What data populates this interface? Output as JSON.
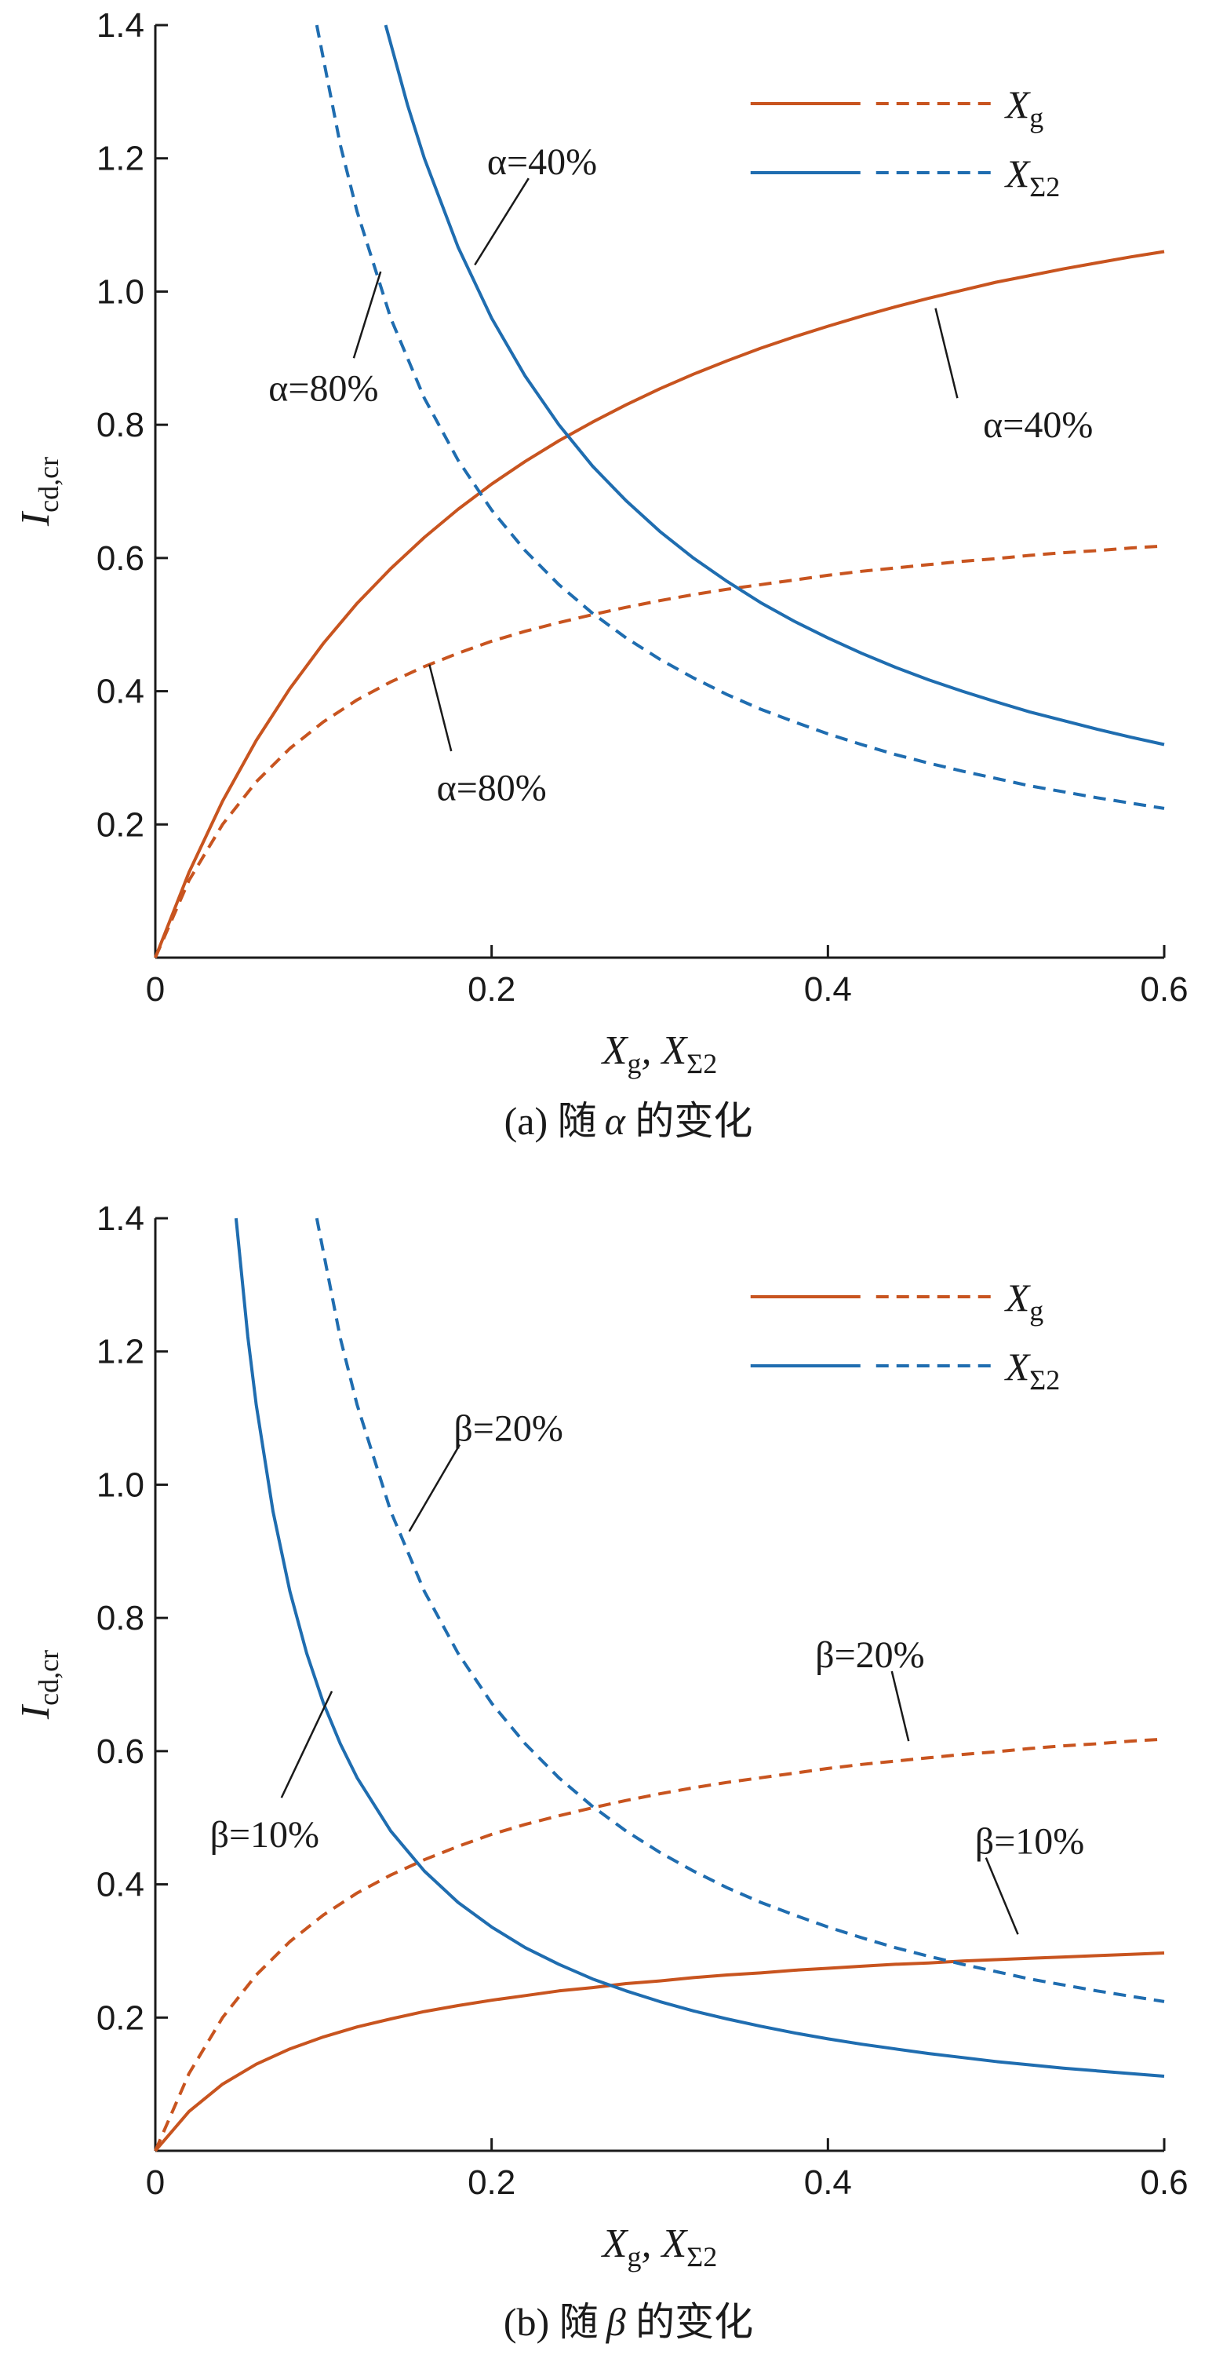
{
  "colors": {
    "orange": "#c8541f",
    "blue": "#1f6db0",
    "axis": "#1a1a1a"
  },
  "chart_data": [
    {
      "type": "line",
      "caption": "(a)  随",
      "caption_symbol": "α",
      "caption_suffix": " 的变化",
      "xlabel": "X",
      "xlabel_sub1": "g",
      "xlabel_mid": ", X",
      "xlabel_sub2": "Σ2",
      "ylabel": "I",
      "ylabel_sub": "cd,cr",
      "xlim": [
        0,
        0.6
      ],
      "ylim": [
        0,
        1.4
      ],
      "xticks": [
        0,
        0.2,
        0.4,
        0.6
      ],
      "xtick_labels": [
        "0",
        "0.2",
        "0.4",
        "0.6"
      ],
      "yticks": [
        0.2,
        0.4,
        0.6,
        0.8,
        1.0,
        1.2,
        1.4
      ],
      "ytick_labels": [
        "0.2",
        "0.4",
        "0.6",
        "0.8",
        "1.0",
        "1.2",
        "1.4"
      ],
      "legend": {
        "position": "top-right",
        "entries": [
          {
            "label": "X",
            "sub": "g",
            "color": "orange"
          },
          {
            "label": "X",
            "sub": "Σ2",
            "color": "blue"
          }
        ]
      },
      "series": [
        {
          "color": "orange",
          "style": "solid",
          "x": [
            0,
            0.02,
            0.04,
            0.06,
            0.08,
            0.1,
            0.12,
            0.14,
            0.16,
            0.18,
            0.2,
            0.22,
            0.24,
            0.26,
            0.28,
            0.3,
            0.32,
            0.34,
            0.36,
            0.38,
            0.4,
            0.42,
            0.44,
            0.46,
            0.48,
            0.5,
            0.52,
            0.54,
            0.56,
            0.58,
            0.6
          ],
          "y": [
            0,
            0.128,
            0.235,
            0.326,
            0.404,
            0.472,
            0.532,
            0.584,
            0.631,
            0.673,
            0.711,
            0.745,
            0.776,
            0.804,
            0.83,
            0.854,
            0.876,
            0.896,
            0.915,
            0.932,
            0.948,
            0.963,
            0.977,
            0.99,
            1.002,
            1.014,
            1.024,
            1.034,
            1.043,
            1.052,
            1.06
          ]
        },
        {
          "color": "orange",
          "style": "dashed",
          "x": [
            0,
            0.02,
            0.04,
            0.06,
            0.08,
            0.1,
            0.12,
            0.14,
            0.16,
            0.18,
            0.2,
            0.22,
            0.24,
            0.26,
            0.28,
            0.3,
            0.32,
            0.34,
            0.36,
            0.38,
            0.4,
            0.42,
            0.44,
            0.46,
            0.48,
            0.5,
            0.52,
            0.54,
            0.56,
            0.58,
            0.6
          ],
          "y": [
            0,
            0.116,
            0.2,
            0.264,
            0.314,
            0.354,
            0.387,
            0.414,
            0.437,
            0.457,
            0.475,
            0.49,
            0.503,
            0.515,
            0.526,
            0.536,
            0.545,
            0.553,
            0.56,
            0.567,
            0.574,
            0.58,
            0.585,
            0.59,
            0.595,
            0.599,
            0.604,
            0.608,
            0.611,
            0.615,
            0.618
          ]
        },
        {
          "color": "blue",
          "style": "solid",
          "x": [
            0.137,
            0.15,
            0.16,
            0.18,
            0.2,
            0.22,
            0.24,
            0.26,
            0.28,
            0.3,
            0.32,
            0.34,
            0.36,
            0.38,
            0.4,
            0.42,
            0.44,
            0.46,
            0.48,
            0.5,
            0.52,
            0.54,
            0.56,
            0.58,
            0.6
          ],
          "y": [
            1.4,
            1.28,
            1.2,
            1.067,
            0.96,
            0.873,
            0.8,
            0.738,
            0.686,
            0.64,
            0.6,
            0.565,
            0.533,
            0.505,
            0.48,
            0.457,
            0.436,
            0.417,
            0.4,
            0.384,
            0.369,
            0.356,
            0.343,
            0.331,
            0.32
          ]
        },
        {
          "color": "blue",
          "style": "dashed",
          "x": [
            0.096,
            0.11,
            0.12,
            0.14,
            0.16,
            0.18,
            0.2,
            0.22,
            0.24,
            0.26,
            0.28,
            0.3,
            0.32,
            0.34,
            0.36,
            0.38,
            0.4,
            0.42,
            0.44,
            0.46,
            0.48,
            0.5,
            0.52,
            0.54,
            0.56,
            0.58,
            0.6
          ],
          "y": [
            1.4,
            1.22,
            1.12,
            0.96,
            0.84,
            0.747,
            0.672,
            0.611,
            0.56,
            0.517,
            0.48,
            0.448,
            0.42,
            0.395,
            0.373,
            0.354,
            0.336,
            0.32,
            0.305,
            0.292,
            0.28,
            0.269,
            0.258,
            0.249,
            0.24,
            0.232,
            0.224
          ]
        }
      ],
      "annotations": [
        {
          "text": "α=40%",
          "at": [
            0.23,
            1.195
          ],
          "leader": [
            [
              0.222,
              1.17
            ],
            [
              0.19,
              1.04
            ]
          ]
        },
        {
          "text": "α=80%",
          "at": [
            0.1,
            0.855
          ],
          "leader": [
            [
              0.118,
              0.9
            ],
            [
              0.134,
              1.03
            ]
          ]
        },
        {
          "text": "α=40%",
          "at": [
            0.525,
            0.8
          ],
          "leader": [
            [
              0.477,
              0.84
            ],
            [
              0.464,
              0.975
            ]
          ]
        },
        {
          "text": "α=80%",
          "at": [
            0.2,
            0.255
          ],
          "leader": [
            [
              0.176,
              0.31
            ],
            [
              0.163,
              0.44
            ]
          ]
        }
      ]
    },
    {
      "type": "line",
      "caption": "(b)  随",
      "caption_symbol": "β",
      "caption_suffix": " 的变化",
      "xlabel": "X",
      "xlabel_sub1": "g",
      "xlabel_mid": ", X",
      "xlabel_sub2": "Σ2",
      "ylabel": "I",
      "ylabel_sub": "cd,cr",
      "xlim": [
        0,
        0.6
      ],
      "ylim": [
        0,
        1.4
      ],
      "xticks": [
        0,
        0.2,
        0.4,
        0.6
      ],
      "xtick_labels": [
        "0",
        "0.2",
        "0.4",
        "0.6"
      ],
      "yticks": [
        0.2,
        0.4,
        0.6,
        0.8,
        1.0,
        1.2,
        1.4
      ],
      "ytick_labels": [
        "0.2",
        "0.4",
        "0.6",
        "0.8",
        "1.0",
        "1.2",
        "1.4"
      ],
      "legend": {
        "position": "top-right",
        "entries": [
          {
            "label": "X",
            "sub": "g",
            "color": "orange"
          },
          {
            "label": "X",
            "sub": "Σ2",
            "color": "blue"
          }
        ]
      },
      "series": [
        {
          "color": "orange",
          "style": "solid",
          "x": [
            0,
            0.02,
            0.04,
            0.06,
            0.08,
            0.1,
            0.12,
            0.14,
            0.16,
            0.18,
            0.2,
            0.22,
            0.24,
            0.26,
            0.28,
            0.3,
            0.32,
            0.34,
            0.36,
            0.38,
            0.4,
            0.42,
            0.44,
            0.46,
            0.48,
            0.5,
            0.52,
            0.54,
            0.56,
            0.58,
            0.6
          ],
          "y": [
            0,
            0.059,
            0.1,
            0.13,
            0.153,
            0.171,
            0.186,
            0.198,
            0.209,
            0.218,
            0.226,
            0.233,
            0.24,
            0.245,
            0.251,
            0.255,
            0.26,
            0.264,
            0.267,
            0.271,
            0.274,
            0.277,
            0.28,
            0.282,
            0.285,
            0.287,
            0.289,
            0.291,
            0.293,
            0.295,
            0.297
          ]
        },
        {
          "color": "orange",
          "style": "dashed",
          "x": [
            0,
            0.02,
            0.04,
            0.06,
            0.08,
            0.1,
            0.12,
            0.14,
            0.16,
            0.18,
            0.2,
            0.22,
            0.24,
            0.26,
            0.28,
            0.3,
            0.32,
            0.34,
            0.36,
            0.38,
            0.4,
            0.42,
            0.44,
            0.46,
            0.48,
            0.5,
            0.52,
            0.54,
            0.56,
            0.58,
            0.6
          ],
          "y": [
            0,
            0.116,
            0.2,
            0.264,
            0.314,
            0.354,
            0.387,
            0.414,
            0.437,
            0.457,
            0.475,
            0.49,
            0.503,
            0.515,
            0.526,
            0.536,
            0.545,
            0.553,
            0.56,
            0.567,
            0.574,
            0.58,
            0.585,
            0.59,
            0.595,
            0.599,
            0.604,
            0.608,
            0.611,
            0.615,
            0.618
          ]
        },
        {
          "color": "blue",
          "style": "solid",
          "x": [
            0.048,
            0.055,
            0.06,
            0.07,
            0.08,
            0.09,
            0.1,
            0.11,
            0.12,
            0.14,
            0.16,
            0.18,
            0.2,
            0.22,
            0.24,
            0.26,
            0.28,
            0.3,
            0.32,
            0.34,
            0.36,
            0.38,
            0.4,
            0.42,
            0.44,
            0.46,
            0.48,
            0.5,
            0.52,
            0.54,
            0.56,
            0.58,
            0.6
          ],
          "y": [
            1.4,
            1.222,
            1.12,
            0.96,
            0.84,
            0.747,
            0.672,
            0.611,
            0.56,
            0.48,
            0.42,
            0.373,
            0.336,
            0.305,
            0.28,
            0.258,
            0.24,
            0.224,
            0.21,
            0.198,
            0.187,
            0.177,
            0.168,
            0.16,
            0.153,
            0.146,
            0.14,
            0.134,
            0.129,
            0.124,
            0.12,
            0.116,
            0.112
          ]
        },
        {
          "color": "blue",
          "style": "dashed",
          "x": [
            0.096,
            0.11,
            0.12,
            0.14,
            0.16,
            0.18,
            0.2,
            0.22,
            0.24,
            0.26,
            0.28,
            0.3,
            0.32,
            0.34,
            0.36,
            0.38,
            0.4,
            0.42,
            0.44,
            0.46,
            0.48,
            0.5,
            0.52,
            0.54,
            0.56,
            0.58,
            0.6
          ],
          "y": [
            1.4,
            1.22,
            1.12,
            0.96,
            0.84,
            0.747,
            0.672,
            0.611,
            0.56,
            0.517,
            0.48,
            0.448,
            0.42,
            0.395,
            0.373,
            0.354,
            0.336,
            0.32,
            0.305,
            0.292,
            0.28,
            0.269,
            0.258,
            0.249,
            0.24,
            0.232,
            0.224
          ]
        }
      ],
      "annotations": [
        {
          "text": "β=20%",
          "at": [
            0.21,
            1.085
          ],
          "leader": [
            [
              0.181,
              1.06
            ],
            [
              0.151,
              0.93
            ]
          ]
        },
        {
          "text": "β=10%",
          "at": [
            0.065,
            0.475
          ],
          "leader": [
            [
              0.075,
              0.53
            ],
            [
              0.105,
              0.69
            ]
          ]
        },
        {
          "text": "β=20%",
          "at": [
            0.425,
            0.745
          ],
          "leader": [
            [
              0.438,
              0.72
            ],
            [
              0.448,
              0.615
            ]
          ]
        },
        {
          "text": "β=10%",
          "at": [
            0.52,
            0.465
          ],
          "leader": [
            [
              0.494,
              0.44
            ],
            [
              0.513,
              0.325
            ]
          ]
        }
      ]
    }
  ]
}
